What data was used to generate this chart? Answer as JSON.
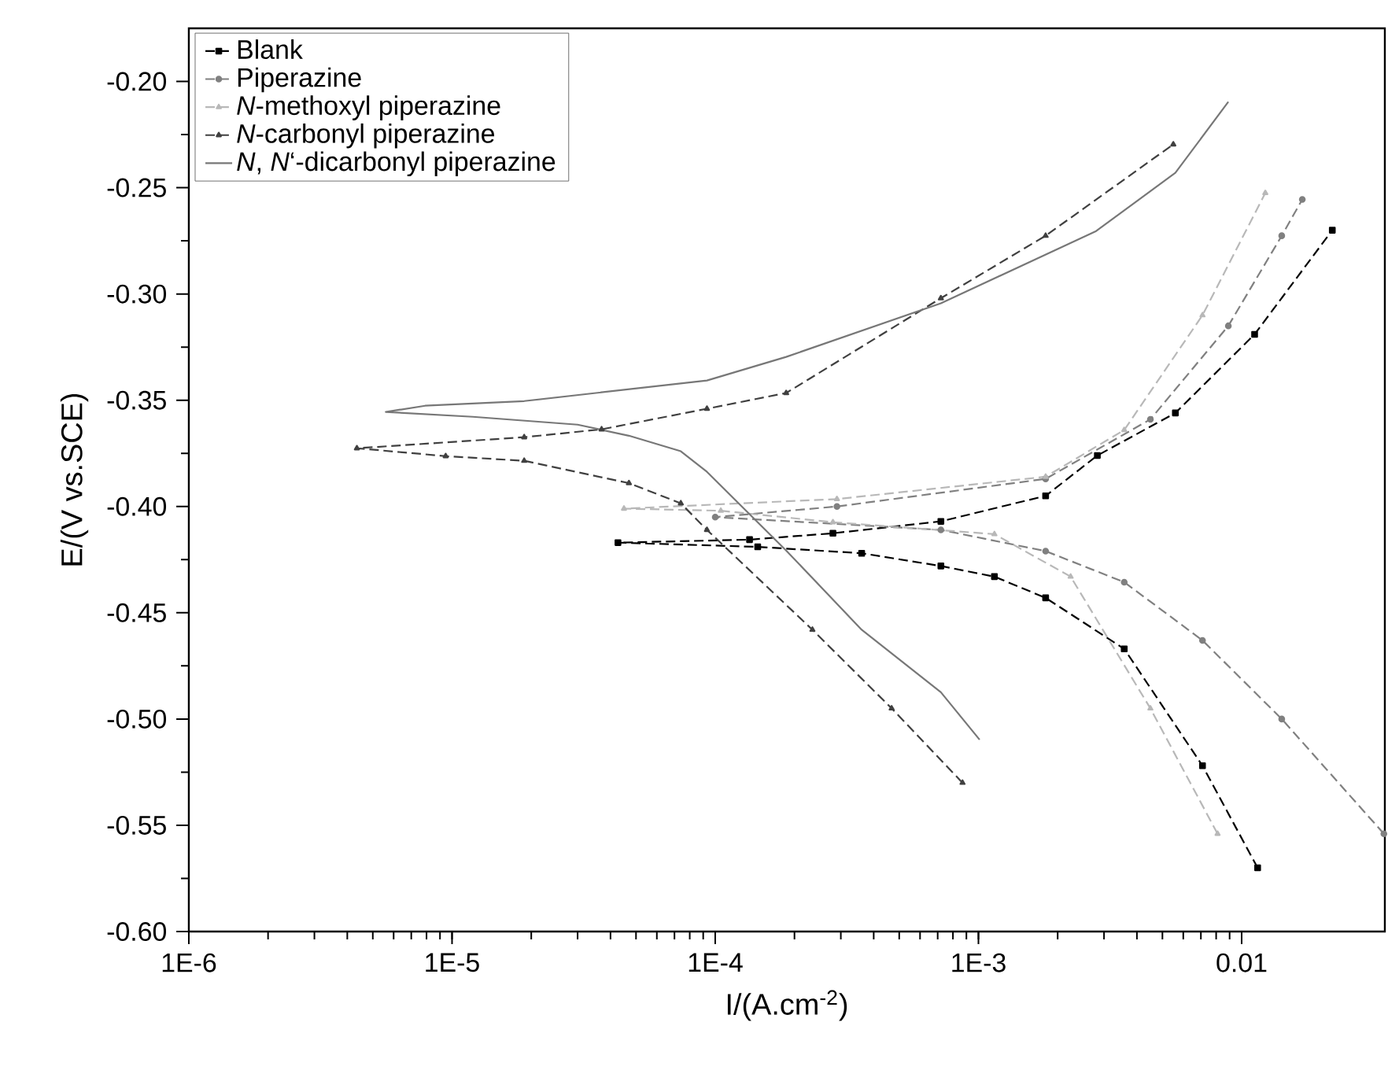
{
  "chart_data": {
    "type": "line",
    "xlabel": "I/(A.cm$^{-2}$)",
    "ylabel": "E/(V vs.SCE)",
    "log": "x",
    "xlim": [
      1e-06,
      0.035
    ],
    "ylim": [
      -0.6,
      -0.175
    ],
    "xticks": [
      {
        "value": 1e-06,
        "label": "1E-6"
      },
      {
        "value": 1e-05,
        "label": "1E-5"
      },
      {
        "value": 0.0001,
        "label": "1E-4"
      },
      {
        "value": 0.001,
        "label": "1E-3"
      },
      0.01
    ],
    "yticks": [
      {
        "value": -0.6,
        "label": "-0.60"
      },
      {
        "value": -0.55,
        "label": "-0.55"
      },
      {
        "value": -0.5,
        "label": "-0.50"
      },
      {
        "value": -0.45,
        "label": "-0.45"
      },
      {
        "value": -0.4,
        "label": "-0.40"
      },
      {
        "value": -0.35,
        "label": "-0.35"
      },
      {
        "value": -0.3,
        "label": "-0.30"
      },
      {
        "value": -0.25,
        "label": "-0.25"
      },
      {
        "value": -0.2,
        "label": "-0.20"
      }
    ],
    "grid": false,
    "legend": "top left",
    "series": [
      {
        "name": "Blank",
        "color": "#000000",
        "marker": "square",
        "line_style": "dashed",
        "x": [
          0.0115,
          0.0071,
          0.00358,
          0.0018,
          0.00115,
          0.00072,
          0.00036,
          0.000145,
          4.27e-05,
          0.000135,
          0.00028,
          0.00072,
          0.0018,
          0.00283,
          0.0056,
          0.0112,
          0.0221
        ],
        "values": [
          -0.57,
          -0.522,
          -0.467,
          -0.443,
          -0.433,
          -0.428,
          -0.422,
          -0.419,
          -0.417,
          -0.4156,
          -0.4126,
          -0.407,
          -0.395,
          -0.376,
          -0.356,
          -0.319,
          -0.27
        ]
      },
      {
        "name": "Piperazine",
        "color": "#808080",
        "marker": "circle",
        "line_style": "dashed",
        "x": [
          0.0347,
          0.0142,
          0.0071,
          0.00358,
          0.0018,
          0.00072,
          0.0001,
          0.00029,
          0.0018,
          0.0045,
          0.0089,
          0.0142,
          0.017
        ],
        "values": [
          -0.554,
          -0.5,
          -0.463,
          -0.4356,
          -0.421,
          -0.411,
          -0.405,
          -0.4,
          -0.387,
          -0.359,
          -0.315,
          -0.2726,
          -0.2555
        ]
      },
      {
        "name": "*N*-methoxyl piperazine",
        "color": "#b8b8b8",
        "marker": "triangle",
        "line_style": "dashed",
        "x": [
          0.0081,
          0.0045,
          0.00224,
          0.00115,
          0.00028,
          0.000105,
          4.5e-05,
          0.00029,
          0.0018,
          0.00358,
          0.0071,
          0.0123
        ],
        "values": [
          -0.554,
          -0.495,
          -0.433,
          -0.413,
          -0.4074,
          -0.402,
          -0.401,
          -0.3965,
          -0.386,
          -0.364,
          -0.31,
          -0.2525
        ]
      },
      {
        "name": "*N*-carbonyl piperazine",
        "color": "#404040",
        "marker": "triangle",
        "line_style": "dashed",
        "x": [
          0.00087,
          0.000468,
          0.000234,
          9.3e-05,
          7.4e-05,
          4.7e-05,
          1.88e-05,
          9.46e-06,
          4.35e-06,
          1.88e-05,
          3.7e-05,
          9.3e-05,
          0.000186,
          0.00072,
          0.0018,
          0.0055
        ],
        "values": [
          -0.53,
          -0.495,
          -0.458,
          -0.411,
          -0.3985,
          -0.389,
          -0.3785,
          -0.3763,
          -0.3726,
          -0.3674,
          -0.3637,
          -0.354,
          -0.3466,
          -0.302,
          -0.2726,
          -0.2296
        ]
      },
      {
        "name": "*N*, *N*‘-dicarbonyl piperazine",
        "color": "#777777",
        "marker": "none",
        "line_style": "solid",
        "x": [
          0.00101,
          0.00072,
          0.00036,
          0.000186,
          9.3e-05,
          7.4e-05,
          4.7e-05,
          3e-05,
          1.2e-05,
          5.6e-06,
          7.9e-06,
          1.88e-05,
          9.3e-05,
          0.000186,
          0.00072,
          0.0028,
          0.0056,
          0.0089
        ],
        "values": [
          -0.5097,
          -0.4874,
          -0.458,
          -0.4207,
          -0.3837,
          -0.374,
          -0.3667,
          -0.3615,
          -0.3578,
          -0.3555,
          -0.3526,
          -0.3504,
          -0.3407,
          -0.3296,
          -0.3044,
          -0.2704,
          -0.243,
          -0.2096
        ]
      }
    ]
  }
}
